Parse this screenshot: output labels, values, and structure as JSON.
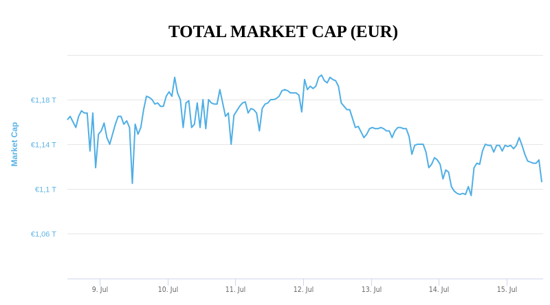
{
  "chart_data": {
    "type": "line",
    "title": "TOTAL MARKET CAP (EUR)",
    "xlabel": "",
    "ylabel": "Market Cap",
    "y_unit": "EUR trillions",
    "ylim": [
      1.02,
      1.22
    ],
    "xlim_days": [
      8.52,
      15.54
    ],
    "grid": true,
    "legend": "none",
    "y_ticks": [
      {
        "value": 1.06,
        "label": "€1,06 T"
      },
      {
        "value": 1.1,
        "label": "€1,1 T"
      },
      {
        "value": 1.14,
        "label": "€1,14 T"
      },
      {
        "value": 1.18,
        "label": "€1,18 T"
      },
      {
        "value": 1.22,
        "label": ""
      }
    ],
    "x_ticks": [
      {
        "day": 9,
        "label": "9. Jul"
      },
      {
        "day": 10,
        "label": "10. Jul"
      },
      {
        "day": 11,
        "label": "11. Jul"
      },
      {
        "day": 12,
        "label": "12. Jul"
      },
      {
        "day": 13,
        "label": "13. Jul"
      },
      {
        "day": 14,
        "label": "14. Jul"
      },
      {
        "day": 15,
        "label": "15. Jul"
      }
    ],
    "series": [
      {
        "name": "Market Cap",
        "color": "#4eaee5",
        "start_day": 8.52,
        "step_hours": 1,
        "values": [
          1.162,
          1.165,
          1.16,
          1.155,
          1.165,
          1.17,
          1.168,
          1.168,
          1.134,
          1.168,
          1.119,
          1.149,
          1.152,
          1.159,
          1.146,
          1.14,
          1.149,
          1.158,
          1.165,
          1.165,
          1.158,
          1.161,
          1.155,
          1.105,
          1.158,
          1.149,
          1.155,
          1.171,
          1.183,
          1.182,
          1.18,
          1.176,
          1.177,
          1.174,
          1.174,
          1.183,
          1.187,
          1.183,
          1.2,
          1.186,
          1.18,
          1.155,
          1.177,
          1.179,
          1.155,
          1.158,
          1.177,
          1.155,
          1.18,
          1.154,
          1.18,
          1.177,
          1.176,
          1.176,
          1.189,
          1.177,
          1.165,
          1.168,
          1.14,
          1.166,
          1.17,
          1.174,
          1.177,
          1.178,
          1.168,
          1.172,
          1.171,
          1.168,
          1.152,
          1.172,
          1.176,
          1.177,
          1.18,
          1.18,
          1.181,
          1.183,
          1.188,
          1.189,
          1.188,
          1.186,
          1.186,
          1.186,
          1.184,
          1.169,
          1.198,
          1.189,
          1.192,
          1.19,
          1.192,
          1.2,
          1.202,
          1.197,
          1.195,
          1.2,
          1.198,
          1.197,
          1.192,
          1.177,
          1.174,
          1.171,
          1.171,
          1.163,
          1.155,
          1.156,
          1.151,
          1.146,
          1.149,
          1.154,
          1.155,
          1.154,
          1.154,
          1.155,
          1.154,
          1.152,
          1.152,
          1.146,
          1.152,
          1.155,
          1.155,
          1.154,
          1.154,
          1.147,
          1.131,
          1.139,
          1.14,
          1.14,
          1.14,
          1.133,
          1.119,
          1.122,
          1.128,
          1.126,
          1.122,
          1.109,
          1.117,
          1.115,
          1.102,
          1.098,
          1.096,
          1.095,
          1.096,
          1.095,
          1.102,
          1.094,
          1.119,
          1.123,
          1.122,
          1.134,
          1.14,
          1.139,
          1.139,
          1.133,
          1.139,
          1.139,
          1.134,
          1.139,
          1.138,
          1.139,
          1.136,
          1.139,
          1.146,
          1.139,
          1.131,
          1.125,
          1.124,
          1.123,
          1.123,
          1.126,
          1.106
        ]
      }
    ]
  }
}
